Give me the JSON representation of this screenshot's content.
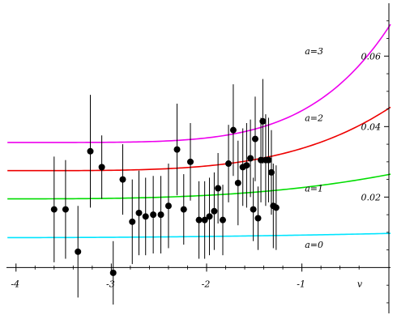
{
  "chart_data": {
    "type": "scatter",
    "xlabel": "v",
    "ylabel": "",
    "xlim": [
      -4.1,
      -0.07
    ],
    "ylim": [
      -0.013,
      0.075
    ],
    "x_ticks": [
      -4,
      -3,
      -2,
      -1
    ],
    "x_tick_labels": [
      "-4",
      "-3",
      "-2",
      "-1"
    ],
    "y_ticks": [
      0.02,
      0.04,
      0.06
    ],
    "y_tick_labels": [
      "0.02",
      "0.04",
      "0.06"
    ],
    "y_axis_side": "right",
    "grid": false,
    "legend": "none",
    "points": [
      {
        "x": -3.6,
        "y": 0.0165,
        "err": 0.015
      },
      {
        "x": -3.48,
        "y": 0.0165,
        "err": 0.014
      },
      {
        "x": -3.35,
        "y": 0.0045,
        "err": 0.013
      },
      {
        "x": -3.22,
        "y": 0.033,
        "err": 0.016
      },
      {
        "x": -3.1,
        "y": 0.0285,
        "err": 0.009
      },
      {
        "x": -2.98,
        "y": -0.0015,
        "err": 0.009
      },
      {
        "x": -2.88,
        "y": 0.025,
        "err": 0.01
      },
      {
        "x": -2.78,
        "y": 0.013,
        "err": 0.012
      },
      {
        "x": -2.71,
        "y": 0.0155,
        "err": 0.012
      },
      {
        "x": -2.64,
        "y": 0.0145,
        "err": 0.011
      },
      {
        "x": -2.56,
        "y": 0.015,
        "err": 0.011
      },
      {
        "x": -2.48,
        "y": 0.015,
        "err": 0.011
      },
      {
        "x": -2.4,
        "y": 0.0175,
        "err": 0.012
      },
      {
        "x": -2.31,
        "y": 0.0335,
        "err": 0.013
      },
      {
        "x": -2.24,
        "y": 0.0165,
        "err": 0.01
      },
      {
        "x": -2.17,
        "y": 0.03,
        "err": 0.011
      },
      {
        "x": -2.08,
        "y": 0.0135,
        "err": 0.011
      },
      {
        "x": -2.02,
        "y": 0.0135,
        "err": 0.011
      },
      {
        "x": -1.97,
        "y": 0.0145,
        "err": 0.011
      },
      {
        "x": -1.92,
        "y": 0.016,
        "err": 0.011
      },
      {
        "x": -1.88,
        "y": 0.0225,
        "err": 0.01
      },
      {
        "x": -1.83,
        "y": 0.0135,
        "err": 0.01
      },
      {
        "x": -1.77,
        "y": 0.0295,
        "err": 0.011
      },
      {
        "x": -1.72,
        "y": 0.039,
        "err": 0.013
      },
      {
        "x": -1.67,
        "y": 0.024,
        "err": 0.012
      },
      {
        "x": -1.62,
        "y": 0.0285,
        "err": 0.011
      },
      {
        "x": -1.58,
        "y": 0.029,
        "err": 0.012
      },
      {
        "x": -1.54,
        "y": 0.031,
        "err": 0.011
      },
      {
        "x": -1.51,
        "y": 0.0165,
        "err": 0.009
      },
      {
        "x": -1.49,
        "y": 0.0365,
        "err": 0.012
      },
      {
        "x": -1.46,
        "y": 0.014,
        "err": 0.009
      },
      {
        "x": -1.43,
        "y": 0.0305,
        "err": 0.012
      },
      {
        "x": -1.41,
        "y": 0.0415,
        "err": 0.012
      },
      {
        "x": -1.38,
        "y": 0.0305,
        "err": 0.013
      },
      {
        "x": -1.35,
        "y": 0.0305,
        "err": 0.012
      },
      {
        "x": -1.32,
        "y": 0.027,
        "err": 0.012
      },
      {
        "x": -1.3,
        "y": 0.0175,
        "err": 0.012
      },
      {
        "x": -1.27,
        "y": 0.017,
        "err": 0.012
      }
    ],
    "curves": [
      {
        "label": "a=0",
        "color": "#00e5ff",
        "start": 0.0085,
        "rise": 0.0012,
        "exponent": 2,
        "label_y": 0.0065
      },
      {
        "label": "a=1",
        "color": "#00dd00",
        "start": 0.0195,
        "rise": 0.007,
        "exponent": 3,
        "label_y": 0.0225
      },
      {
        "label": "a=2",
        "color": "#ee0000",
        "start": 0.0275,
        "rise": 0.018,
        "exponent": 4,
        "label_y": 0.0425
      },
      {
        "label": "a=3",
        "color": "#ee00ee",
        "start": 0.0355,
        "rise": 0.0335,
        "exponent": 5,
        "label_y": 0.0615
      }
    ]
  }
}
